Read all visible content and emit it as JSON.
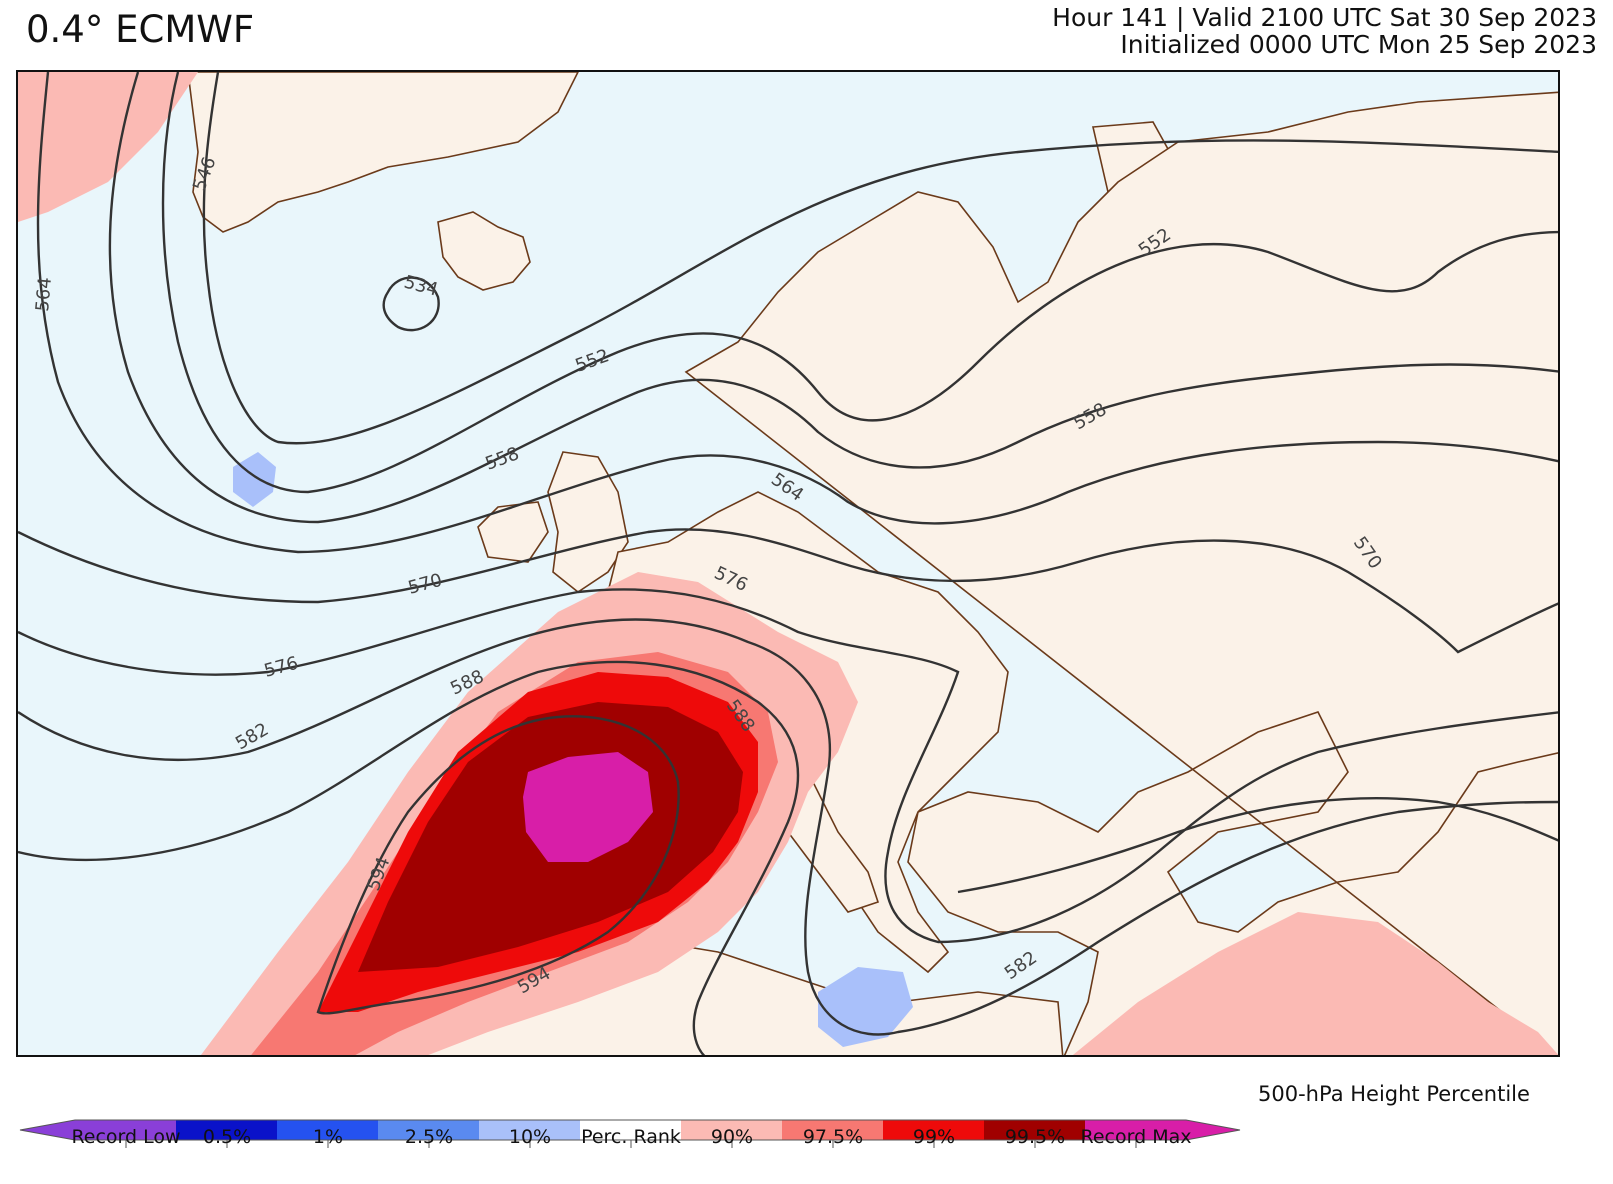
{
  "header": {
    "title": "0.4° ECMWF",
    "valid_line": "Hour 141 | Valid 2100 UTC Sat 30 Sep 2023",
    "init_line": "Initialized 0000 UTC Mon 25 Sep 2023"
  },
  "map": {
    "contour_labels": [
      "546",
      "564",
      "534",
      "552",
      "558",
      "570",
      "576",
      "582",
      "588",
      "594",
      "564",
      "576",
      "588",
      "594",
      "552",
      "558",
      "570",
      "582"
    ]
  },
  "colorbar": {
    "title": "500-hPa Height Percentile",
    "ticks": [
      "Record Low",
      "0.5%",
      "1%",
      "2.5%",
      "10%",
      "Perc. Rank",
      "90%",
      "97.5%",
      "99%",
      "99.5%",
      "Record Max"
    ],
    "bins": [
      {
        "name": "below-0.5",
        "color": "#8a3fd8"
      },
      {
        "name": "0.5-1",
        "color": "#0a12c9"
      },
      {
        "name": "1-2.5",
        "color": "#2552f0"
      },
      {
        "name": "2.5-10",
        "color": "#5a8af0"
      },
      {
        "name": "10-perc",
        "color": "#a9c0fa"
      },
      {
        "name": "perc-90",
        "color": "#ffffff"
      },
      {
        "name": "90-97.5",
        "color": "#fbbab4"
      },
      {
        "name": "97.5-99",
        "color": "#f77872"
      },
      {
        "name": "99-99.5",
        "color": "#ee0a0a"
      },
      {
        "name": "99.5-max",
        "color": "#a00000"
      },
      {
        "name": "above-max",
        "color": "#d81ea8"
      }
    ],
    "colors": {
      "ocean": "#e9f6fb",
      "land": "#fbf2e8",
      "coast": "#6b3a1a"
    }
  }
}
